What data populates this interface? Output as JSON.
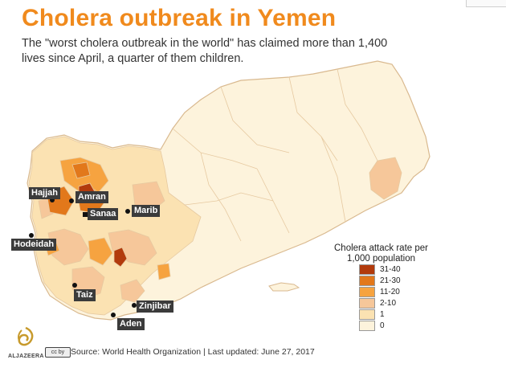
{
  "header": {
    "title": "Cholera outbreak in Yemen",
    "subtitle": "The \"worst cholera outbreak in the world\" has claimed more than 1,400 lives since April, a quarter of them children."
  },
  "cities": [
    {
      "name": "Hajjah"
    },
    {
      "name": "Amran"
    },
    {
      "name": "Sanaa"
    },
    {
      "name": "Marib"
    },
    {
      "name": "Hodeidah"
    },
    {
      "name": "Taiz"
    },
    {
      "name": "Zinjibar"
    },
    {
      "name": "Aden"
    }
  ],
  "legend": {
    "title": "Cholera attack rate per 1,000 population",
    "items": [
      {
        "label": "31-40",
        "color": "#b23a0c"
      },
      {
        "label": "21-30",
        "color": "#e2781b"
      },
      {
        "label": "11-20",
        "color": "#f6a340"
      },
      {
        "label": "2-10",
        "color": "#f6c79a"
      },
      {
        "label": "1",
        "color": "#fbe2b2"
      },
      {
        "label": "0",
        "color": "#fdf3dc"
      }
    ]
  },
  "footer": {
    "source": "Source: World Health Organization | Last updated: June 27, 2017",
    "brand": "ALJAZEERA",
    "license": "cc by"
  },
  "colors": {
    "title": "#f08a1d",
    "map_base": "#fdf3dc",
    "borders": "#e6c9a0"
  }
}
